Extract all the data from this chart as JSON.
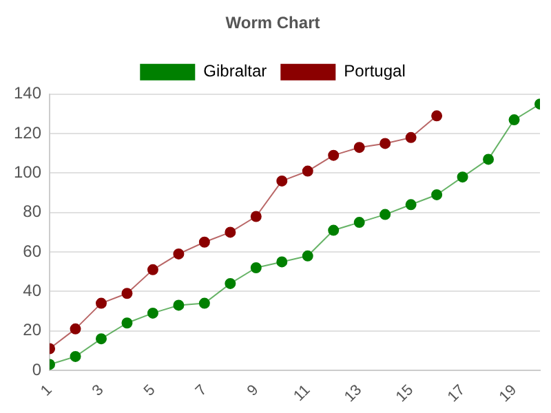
{
  "chart_data": {
    "type": "line",
    "title": "Worm Chart",
    "x": [
      1,
      2,
      3,
      4,
      5,
      6,
      7,
      8,
      9,
      10,
      11,
      12,
      13,
      14,
      15,
      16,
      17,
      18,
      19,
      20
    ],
    "xlim": [
      1,
      20
    ],
    "xticks": [
      1,
      3,
      5,
      7,
      9,
      11,
      13,
      15,
      17,
      19
    ],
    "series": [
      {
        "name": "Gibraltar",
        "color": "#008000",
        "values": [
          3,
          7,
          16,
          24,
          29,
          33,
          34,
          44,
          52,
          55,
          58,
          71,
          75,
          79,
          84,
          89,
          98,
          107,
          127,
          135
        ]
      },
      {
        "name": "Portugal",
        "color": "#8b0000",
        "values": [
          11,
          21,
          34,
          39,
          51,
          59,
          65,
          70,
          78,
          96,
          101,
          109,
          113,
          115,
          118,
          129,
          null,
          null,
          null,
          null
        ]
      }
    ],
    "ylim": [
      0,
      140
    ],
    "yticks": [
      0,
      20,
      40,
      60,
      80,
      100,
      120,
      140
    ],
    "grid": "y",
    "legend": "top",
    "marker": "circle",
    "line_style": "solid"
  }
}
